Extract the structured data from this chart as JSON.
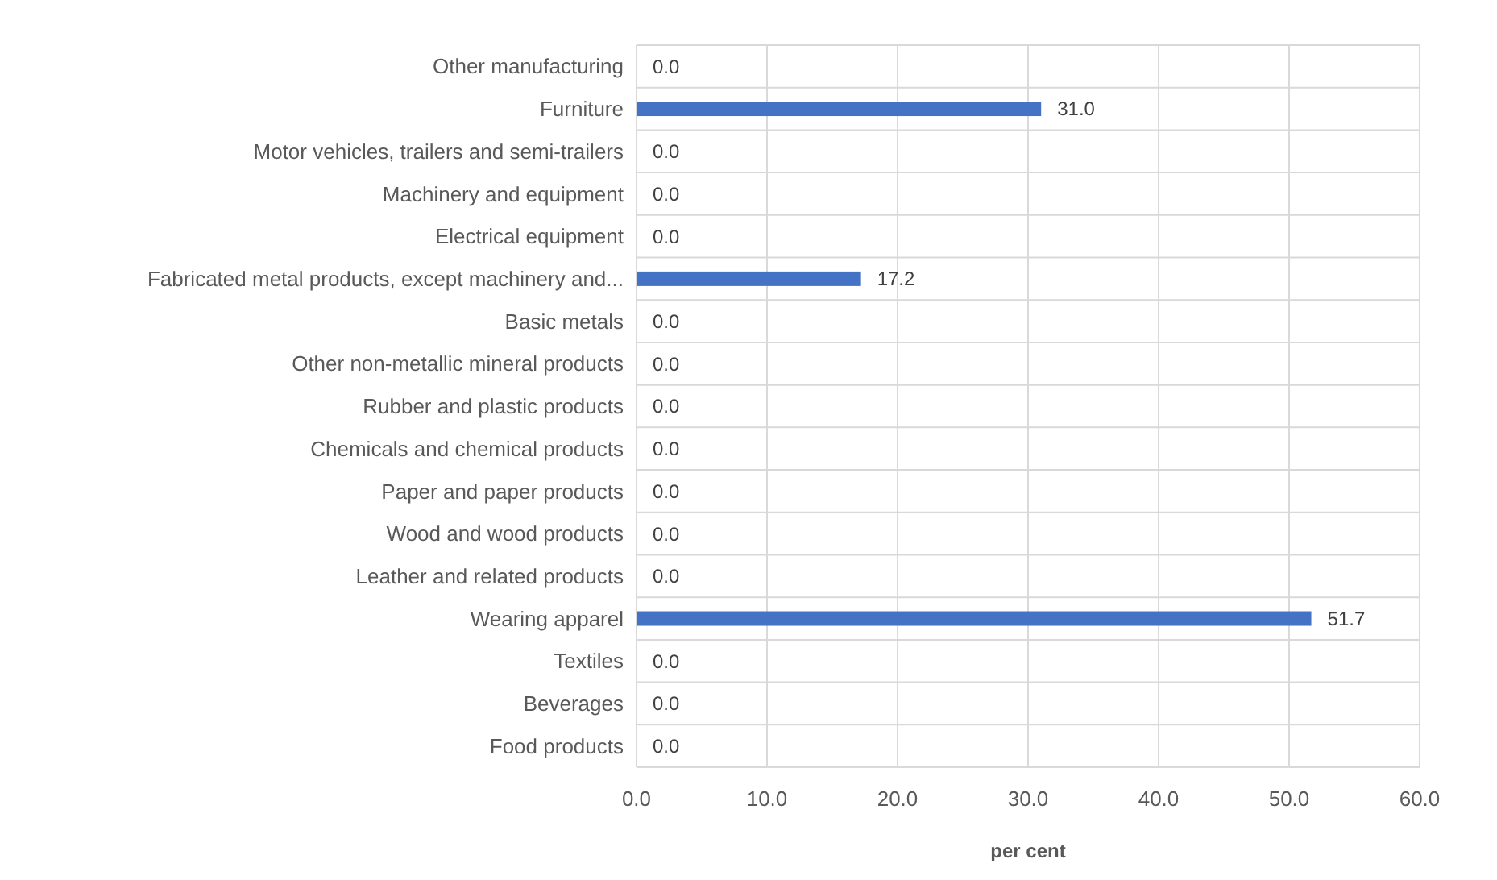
{
  "chart_data": {
    "type": "bar",
    "orientation": "horizontal",
    "xlabel": "per cent",
    "categories": [
      "Other manufacturing",
      "Furniture",
      "Motor vehicles, trailers and semi-trailers",
      "Machinery and equipment",
      "Electrical equipment",
      "Fabricated metal products, except machinery and...",
      "Basic metals",
      "Other non-metallic mineral products",
      "Rubber and plastic products",
      "Chemicals and chemical products",
      "Paper and paper products",
      "Wood and wood products",
      "Leather and related products",
      "Wearing apparel",
      "Textiles",
      "Beverages",
      "Food products"
    ],
    "values": [
      0.0,
      31.0,
      0.0,
      0.0,
      0.0,
      17.2,
      0.0,
      0.0,
      0.0,
      0.0,
      0.0,
      0.0,
      0.0,
      51.7,
      0.0,
      0.0,
      0.0
    ],
    "color": "#4472c4",
    "xlim": [
      0,
      60
    ],
    "xticks": [
      {
        "value": 0,
        "label": "0.0"
      },
      {
        "value": 10,
        "label": "10.0"
      },
      {
        "value": 20,
        "label": "20.0"
      },
      {
        "value": 30,
        "label": "30.0"
      },
      {
        "value": 40,
        "label": "40.0"
      },
      {
        "value": 50,
        "label": "50.0"
      },
      {
        "value": 60,
        "label": "60.0"
      }
    ],
    "value_labels": [
      "0.0",
      "31.0",
      "0.0",
      "0.0",
      "0.0",
      "17.2",
      "0.0",
      "0.0",
      "0.0",
      "0.0",
      "0.0",
      "0.0",
      "0.0",
      "51.7",
      "0.0",
      "0.0",
      "0.0"
    ],
    "grid": true
  }
}
